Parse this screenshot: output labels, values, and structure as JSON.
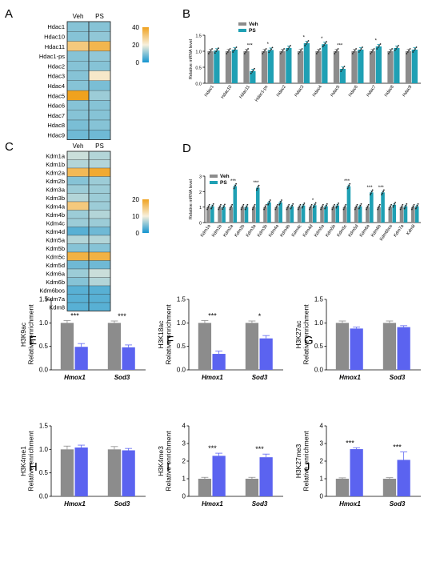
{
  "colors": {
    "veh_gray": "#8c8c8c",
    "ps_teal": "#1fa0b4",
    "ps_blue": "#5b63f0",
    "heat_low": "#1495d0",
    "heat_mid": "#f7f0dc",
    "heat_high": "#f0a21e"
  },
  "legend": {
    "veh": "Veh",
    "ps": "PS"
  },
  "chart_data": [
    {
      "id": "A",
      "type": "heatmap",
      "panel_label": "A",
      "columns": [
        "Veh",
        "PS"
      ],
      "rows": [
        "Hdac1",
        "Hdac10",
        "Hdac11",
        "Hdac1-ps",
        "Hdac2",
        "Hdac3",
        "Hdac4",
        "Hdac5",
        "Hdac6",
        "Hdac7",
        "Hdac8",
        "Hdac9"
      ],
      "values": [
        [
          10,
          10
        ],
        [
          10,
          11
        ],
        [
          30,
          35
        ],
        [
          10,
          11
        ],
        [
          10,
          10
        ],
        [
          10,
          22
        ],
        [
          10,
          9
        ],
        [
          40,
          12
        ],
        [
          10,
          10
        ],
        [
          10,
          10
        ],
        [
          9,
          10
        ],
        [
          8,
          8
        ]
      ],
      "colorbar": {
        "min": 0,
        "max": 40,
        "ticks": [
          "40",
          "20",
          "0"
        ]
      }
    },
    {
      "id": "B",
      "type": "bar",
      "panel_label": "B",
      "ylabel": "Relative mRNA level",
      "ylim": [
        0,
        1.5
      ],
      "yticks": [
        "0.0",
        "0.5",
        "1.0",
        "1.5"
      ],
      "categories": [
        "Hdac1",
        "Hdac10",
        "Hdac11",
        "Hdac1-ps",
        "Hdac2",
        "Hdac3",
        "Hdac4",
        "Hdac5",
        "Hdac6",
        "Hdac7",
        "Hdac8",
        "Hdac9"
      ],
      "series": [
        {
          "name": "Veh",
          "values": [
            1.0,
            1.0,
            1.0,
            1.0,
            1.0,
            1.0,
            1.0,
            1.0,
            1.0,
            1.0,
            1.0,
            1.0
          ]
        },
        {
          "name": "PS",
          "values": [
            1.02,
            1.05,
            0.38,
            1.04,
            1.1,
            1.25,
            1.22,
            0.45,
            1.05,
            1.15,
            1.1,
            1.05
          ]
        }
      ],
      "sig": [
        "",
        "",
        "***",
        "*",
        "",
        "*",
        "*",
        "***",
        "",
        "*",
        "",
        ""
      ]
    },
    {
      "id": "C",
      "type": "heatmap",
      "panel_label": "C",
      "columns": [
        "Veh",
        "PS"
      ],
      "rows": [
        "Kdm1a",
        "Kdm1b",
        "Kdm2a",
        "Kdm2b",
        "Kdm3a",
        "Kdm3b",
        "Kdm4a",
        "Kdm4b",
        "Kdm4c",
        "Kdm4d",
        "Kdm5a",
        "Kdm5b",
        "Kdm5c",
        "Kdm5d",
        "Kdm6a",
        "Kdm6b",
        "Kdm6bos",
        "Kdm7a",
        "Kdm8"
      ],
      "values": [
        [
          8,
          7
        ],
        [
          7,
          7
        ],
        [
          17,
          19
        ],
        [
          5,
          6
        ],
        [
          6,
          6
        ],
        [
          7,
          6
        ],
        [
          15,
          6
        ],
        [
          6,
          7
        ],
        [
          6,
          6
        ],
        [
          3,
          4
        ],
        [
          7,
          7
        ],
        [
          5,
          5
        ],
        [
          18,
          18
        ],
        [
          4,
          4
        ],
        [
          6,
          8
        ],
        [
          5,
          7
        ],
        [
          3,
          3
        ],
        [
          3,
          3
        ],
        [
          3,
          3
        ]
      ],
      "colorbar": {
        "min": 0,
        "max": 20,
        "ticks": [
          "20",
          "10",
          "0"
        ]
      }
    },
    {
      "id": "D",
      "type": "bar",
      "panel_label": "D",
      "ylabel": "Relative mRNA level",
      "ylim": [
        0,
        3
      ],
      "yticks": [
        "0",
        "1",
        "2",
        "3"
      ],
      "categories": [
        "Kdm1a",
        "Kdm1b",
        "Kdm2a",
        "Kdm2b",
        "Kdm3a",
        "Kdm3b",
        "Kdm4a",
        "Kdm4b",
        "Kdm4c",
        "Kdm4d",
        "Kdm5a",
        "Kdm5b",
        "Kdm5c",
        "Kdm5d",
        "Kdm6a",
        "Kdm6b",
        "Kdm6bos",
        "Kdm7a",
        "Kdm8"
      ],
      "series": [
        {
          "name": "Veh",
          "values": [
            1,
            1,
            1,
            1,
            1,
            1,
            1,
            1,
            1,
            1,
            1,
            1,
            1,
            1,
            1,
            1,
            1,
            1,
            1
          ]
        },
        {
          "name": "PS",
          "values": [
            1.05,
            1.02,
            2.35,
            1.0,
            2.25,
            1.3,
            1.3,
            1.05,
            1.1,
            1.12,
            1.05,
            1.1,
            2.35,
            1.05,
            1.95,
            1.95,
            1.15,
            1.05,
            1.05
          ]
        }
      ],
      "sig": [
        "",
        "",
        "***",
        "",
        "***",
        "",
        "",
        "",
        "",
        "*",
        "",
        "",
        "***",
        "",
        "***",
        "***",
        "",
        "",
        ""
      ]
    },
    {
      "id": "E",
      "type": "bar",
      "panel_label": "E",
      "ylabel": "H3K9ac",
      "ylabel2": "Relative enrichment",
      "ylim": [
        0,
        1.5
      ],
      "yticks": [
        "0.0",
        "0.5",
        "1.0",
        "1.5"
      ],
      "categories": [
        "Hmox1",
        "Sod3"
      ],
      "series": [
        {
          "name": "Veh",
          "values": [
            1.0,
            1.0
          ],
          "err": [
            0.05,
            0.04
          ]
        },
        {
          "name": "PS",
          "values": [
            0.49,
            0.48
          ],
          "err": [
            0.07,
            0.05
          ]
        }
      ],
      "sig": [
        "***",
        "***"
      ]
    },
    {
      "id": "F",
      "type": "bar",
      "panel_label": "F",
      "ylabel": "H3K18ac",
      "ylabel2": "Relative enrichment",
      "ylim": [
        0,
        1.5
      ],
      "yticks": [
        "0.0",
        "0.5",
        "1.0",
        "1.5"
      ],
      "categories": [
        "Hmox1",
        "Sod3"
      ],
      "series": [
        {
          "name": "Veh",
          "values": [
            1.0,
            1.0
          ],
          "err": [
            0.05,
            0.04
          ]
        },
        {
          "name": "PS",
          "values": [
            0.34,
            0.67
          ],
          "err": [
            0.06,
            0.06
          ]
        }
      ],
      "sig": [
        "***",
        "*"
      ]
    },
    {
      "id": "G",
      "type": "bar",
      "panel_label": "G",
      "ylabel": "H3K27ac",
      "ylabel2": "Relative enrichment",
      "ylim": [
        0,
        1.5
      ],
      "yticks": [
        "0.0",
        "0.5",
        "1.0",
        "1.5"
      ],
      "categories": [
        "Hmox1",
        "Sod3"
      ],
      "series": [
        {
          "name": "Veh",
          "values": [
            1.0,
            1.0
          ],
          "err": [
            0.04,
            0.04
          ]
        },
        {
          "name": "PS",
          "values": [
            0.88,
            0.91
          ],
          "err": [
            0.03,
            0.03
          ]
        }
      ],
      "sig": [
        "",
        ""
      ]
    },
    {
      "id": "H",
      "type": "bar",
      "panel_label": "H",
      "ylabel": "H3K4me1",
      "ylabel2": "Relative enrichment",
      "ylim": [
        0,
        1.5
      ],
      "yticks": [
        "0.0",
        "0.5",
        "1.0",
        "1.5"
      ],
      "categories": [
        "Hmox1",
        "Sod3"
      ],
      "series": [
        {
          "name": "Veh",
          "values": [
            1.0,
            1.0
          ],
          "err": [
            0.07,
            0.06
          ]
        },
        {
          "name": "PS",
          "values": [
            1.04,
            0.98
          ],
          "err": [
            0.05,
            0.04
          ]
        }
      ],
      "sig": [
        "",
        ""
      ]
    },
    {
      "id": "I",
      "type": "bar",
      "panel_label": "I",
      "ylabel": "H3K4me3",
      "ylabel2": "Relative enrichment",
      "ylim": [
        0,
        4
      ],
      "yticks": [
        "0",
        "1",
        "2",
        "3",
        "4"
      ],
      "categories": [
        "Hmox1",
        "Sod3"
      ],
      "series": [
        {
          "name": "Veh",
          "values": [
            1.0,
            1.0
          ],
          "err": [
            0.08,
            0.08
          ]
        },
        {
          "name": "PS",
          "values": [
            2.3,
            2.22
          ],
          "err": [
            0.15,
            0.18
          ]
        }
      ],
      "sig": [
        "***",
        "***"
      ]
    },
    {
      "id": "J",
      "type": "bar",
      "panel_label": "J",
      "ylabel": "H3K27me3",
      "ylabel2": "Relative enrichment",
      "ylim": [
        0,
        4
      ],
      "yticks": [
        "0",
        "1",
        "2",
        "3",
        "4"
      ],
      "categories": [
        "Hmox1",
        "Sod3"
      ],
      "series": [
        {
          "name": "Veh",
          "values": [
            1.0,
            1.0
          ],
          "err": [
            0.05,
            0.06
          ]
        },
        {
          "name": "PS",
          "values": [
            2.68,
            2.07
          ],
          "err": [
            0.08,
            0.45
          ]
        }
      ],
      "sig": [
        "***",
        "***"
      ]
    }
  ]
}
